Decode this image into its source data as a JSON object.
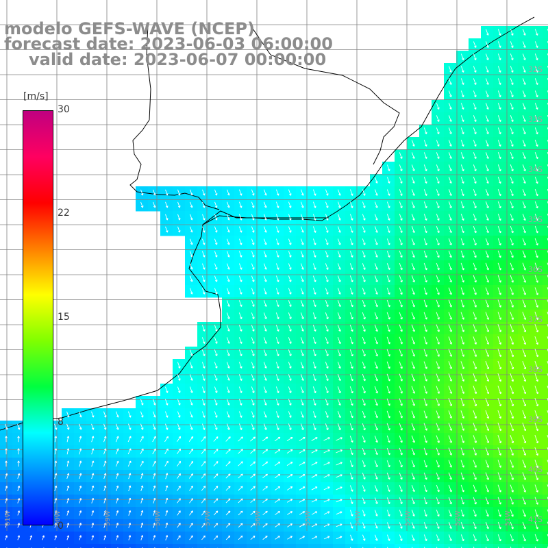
{
  "title": {
    "line1": "modelo GEFS-WAVE (NCEP)",
    "line2": "forecast date: 2023-06-03 06:00:00",
    "line3": "valid date: 2023-06-07 00:00:00"
  },
  "legend": {
    "unit": "[m/s]",
    "min": 0,
    "max": 30,
    "ticks": [
      {
        "label": "30",
        "value": 30
      },
      {
        "label": "22",
        "value": 22
      },
      {
        "label": "15",
        "value": 15
      },
      {
        "label": "8",
        "value": 8
      },
      {
        "label": "0",
        "value": 0
      }
    ],
    "gradient": [
      "#0000ff",
      "#0080ff",
      "#00ffff",
      "#00ff40",
      "#80ff00",
      "#ffff00",
      "#ff8000",
      "#ff0000",
      "#ff0060",
      "#c00080"
    ]
  },
  "map": {
    "latitude_labels": [
      "32S",
      "33S",
      "34S",
      "35S",
      "36S",
      "37S",
      "38S",
      "39S",
      "40S",
      "41S"
    ],
    "longitude_labels": [
      "61W",
      "60W",
      "59W",
      "58W",
      "57W",
      "56W",
      "55W",
      "54W",
      "53W",
      "52W",
      "51W"
    ],
    "land_color": "#ffffff",
    "coast_color": "#000000",
    "grid_color": "#808080"
  }
}
